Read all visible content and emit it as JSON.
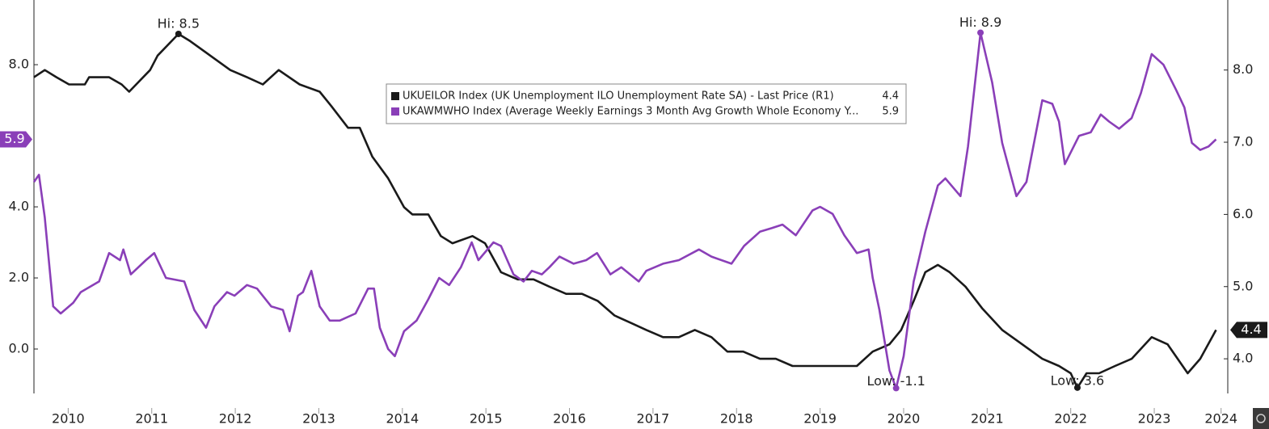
{
  "chart_data": {
    "type": "line",
    "xlim": [
      2010.09,
      2024.38
    ],
    "ylim": [
      -1.25,
      9.82
    ],
    "y2lim": [
      3.52,
      8.97
    ],
    "xticks": [
      {
        "value": 2010.5,
        "label": "2010"
      },
      {
        "value": 2011.5,
        "label": "2011"
      },
      {
        "value": 2012.5,
        "label": "2012"
      },
      {
        "value": 2013.5,
        "label": "2013"
      },
      {
        "value": 2014.5,
        "label": "2014"
      },
      {
        "value": 2015.5,
        "label": "2015"
      },
      {
        "value": 2016.5,
        "label": "2016"
      },
      {
        "value": 2017.5,
        "label": "2017"
      },
      {
        "value": 2018.5,
        "label": "2018"
      },
      {
        "value": 2019.5,
        "label": "2019"
      },
      {
        "value": 2020.5,
        "label": "2020"
      },
      {
        "value": 2021.5,
        "label": "2021"
      },
      {
        "value": 2022.5,
        "label": "2022"
      },
      {
        "value": 2023.5,
        "label": "2023"
      },
      {
        "value": 2024.3,
        "label": "2024"
      }
    ],
    "yticks": [
      {
        "value": 0,
        "label": "0.0"
      },
      {
        "value": 2,
        "label": "2.0"
      },
      {
        "value": 4,
        "label": "4.0"
      },
      {
        "value": 8,
        "label": "8.0"
      }
    ],
    "y2ticks": [
      {
        "value": 4,
        "label": "4.0"
      },
      {
        "value": 5,
        "label": "5.0"
      },
      {
        "value": 6,
        "label": "6.0"
      },
      {
        "value": 7,
        "label": "7.0"
      },
      {
        "value": 8,
        "label": "8.0"
      }
    ],
    "grid": false,
    "series": [
      {
        "name": "UKUEILOR Index (UK Unemployment ILO Unemployment Rate SA) - Last Price (R1)",
        "color": "#1a1a1a",
        "axis": "y2",
        "x": [
          2010.09,
          2010.22,
          2010.36,
          2010.51,
          2010.7,
          2010.75,
          2010.99,
          2011.14,
          2011.23,
          2011.48,
          2011.57,
          2011.82,
          2011.96,
          2012.2,
          2012.44,
          2012.64,
          2012.83,
          2013.02,
          2013.27,
          2013.51,
          2013.65,
          2013.85,
          2013.99,
          2014.14,
          2014.33,
          2014.52,
          2014.62,
          2014.81,
          2014.96,
          2015.1,
          2015.34,
          2015.49,
          2015.68,
          2015.88,
          2016.07,
          2016.26,
          2016.46,
          2016.65,
          2016.84,
          2017.04,
          2017.23,
          2017.42,
          2017.62,
          2017.81,
          2018.0,
          2018.2,
          2018.39,
          2018.58,
          2018.78,
          2018.97,
          2019.17,
          2019.36,
          2019.55,
          2019.75,
          2019.94,
          2020.13,
          2020.33,
          2020.47,
          2020.62,
          2020.76,
          2020.91,
          2021.05,
          2021.24,
          2021.44,
          2021.68,
          2021.92,
          2022.16,
          2022.36,
          2022.5,
          2022.58,
          2022.69,
          2022.84,
          2023.03,
          2023.23,
          2023.47,
          2023.66,
          2023.9,
          2024.05,
          2024.24
        ],
        "values": [
          7.9,
          8.0,
          7.9,
          7.8,
          7.8,
          7.9,
          7.9,
          7.8,
          7.7,
          8.0,
          8.2,
          8.5,
          8.4,
          8.2,
          8.0,
          7.9,
          7.8,
          8.0,
          7.8,
          7.7,
          7.5,
          7.2,
          7.2,
          6.8,
          6.5,
          6.1,
          6.0,
          6.0,
          5.7,
          5.6,
          5.7,
          5.6,
          5.2,
          5.1,
          5.1,
          5.0,
          4.9,
          4.9,
          4.8,
          4.6,
          4.5,
          4.4,
          4.3,
          4.3,
          4.4,
          4.3,
          4.1,
          4.1,
          4.0,
          4.0,
          3.9,
          3.9,
          3.9,
          3.9,
          3.9,
          4.1,
          4.2,
          4.4,
          4.8,
          5.2,
          5.3,
          5.2,
          5.0,
          4.7,
          4.4,
          4.2,
          4.0,
          3.9,
          3.8,
          3.6,
          3.8,
          3.8,
          3.9,
          4.0,
          4.3,
          4.2,
          3.8,
          4.0,
          4.4
        ]
      },
      {
        "name": "UKAWMWHO Index (Average Weekly Earnings 3 Month Avg Growth Whole Economy Y...",
        "color": "#8a3fb8",
        "axis": "y",
        "x": [
          2010.09,
          2010.15,
          2010.22,
          2010.32,
          2010.41,
          2010.56,
          2010.65,
          2010.87,
          2010.99,
          2011.12,
          2011.16,
          2011.25,
          2011.43,
          2011.53,
          2011.67,
          2011.89,
          2012.01,
          2012.15,
          2012.25,
          2012.4,
          2012.49,
          2012.64,
          2012.76,
          2012.93,
          2013.07,
          2013.15,
          2013.25,
          2013.31,
          2013.41,
          2013.51,
          2013.63,
          2013.75,
          2013.94,
          2014.09,
          2014.16,
          2014.23,
          2014.33,
          2014.41,
          2014.52,
          2014.67,
          2014.81,
          2014.94,
          2015.06,
          2015.2,
          2015.33,
          2015.41,
          2015.59,
          2015.68,
          2015.83,
          2015.95,
          2016.05,
          2016.17,
          2016.26,
          2016.38,
          2016.55,
          2016.7,
          2016.83,
          2016.99,
          2017.12,
          2017.33,
          2017.42,
          2017.62,
          2017.81,
          2018.05,
          2018.2,
          2018.44,
          2018.59,
          2018.78,
          2018.92,
          2019.05,
          2019.21,
          2019.41,
          2019.5,
          2019.65,
          2019.79,
          2019.94,
          2020.08,
          2020.13,
          2020.21,
          2020.33,
          2020.41,
          2020.5,
          2020.62,
          2020.76,
          2020.91,
          2021.0,
          2021.18,
          2021.27,
          2021.42,
          2021.56,
          2021.68,
          2021.85,
          2021.97,
          2022.16,
          2022.28,
          2022.36,
          2022.43,
          2022.6,
          2022.74,
          2022.86,
          2022.96,
          2023.08,
          2023.23,
          2023.34,
          2023.47,
          2023.61,
          2023.76,
          2023.86,
          2023.95,
          2024.05,
          2024.15,
          2024.24
        ],
        "values": [
          4.7,
          4.9,
          3.7,
          1.2,
          1.0,
          1.3,
          1.6,
          1.9,
          2.7,
          2.5,
          2.8,
          2.1,
          2.5,
          2.7,
          2.0,
          1.9,
          1.1,
          0.6,
          1.2,
          1.6,
          1.5,
          1.8,
          1.7,
          1.2,
          1.1,
          0.5,
          1.5,
          1.6,
          2.2,
          1.2,
          0.8,
          0.8,
          1.0,
          1.7,
          1.7,
          0.6,
          0.0,
          -0.2,
          0.5,
          0.8,
          1.4,
          2.0,
          1.8,
          2.3,
          3.0,
          2.5,
          3.0,
          2.9,
          2.1,
          1.9,
          2.2,
          2.1,
          2.3,
          2.6,
          2.4,
          2.5,
          2.7,
          2.1,
          2.3,
          1.9,
          2.2,
          2.4,
          2.5,
          2.8,
          2.6,
          2.4,
          2.9,
          3.3,
          3.4,
          3.5,
          3.2,
          3.9,
          4.0,
          3.8,
          3.2,
          2.7,
          2.8,
          2.0,
          1.1,
          -0.6,
          -1.1,
          -0.2,
          1.9,
          3.3,
          4.6,
          4.8,
          4.3,
          5.7,
          8.9,
          7.5,
          5.8,
          4.3,
          4.7,
          7.0,
          6.9,
          6.4,
          5.2,
          6.0,
          6.1,
          6.6,
          6.4,
          6.2,
          6.5,
          7.2,
          8.3,
          8.0,
          7.3,
          6.8,
          5.8,
          5.6,
          5.7,
          5.9
        ]
      }
    ],
    "annotations": [
      {
        "text": "Hi: 8.5",
        "series": 0,
        "x": 2011.82,
        "y": 8.5
      },
      {
        "text": "Low: 3.6",
        "series": 0,
        "x": 2022.58,
        "y": 3.6
      },
      {
        "text": "Hi: 8.9",
        "series": 1,
        "x": 2021.42,
        "y": 8.9
      },
      {
        "text": "Low: -1.1",
        "series": 1,
        "x": 2020.41,
        "y": -1.1
      }
    ]
  }
}
